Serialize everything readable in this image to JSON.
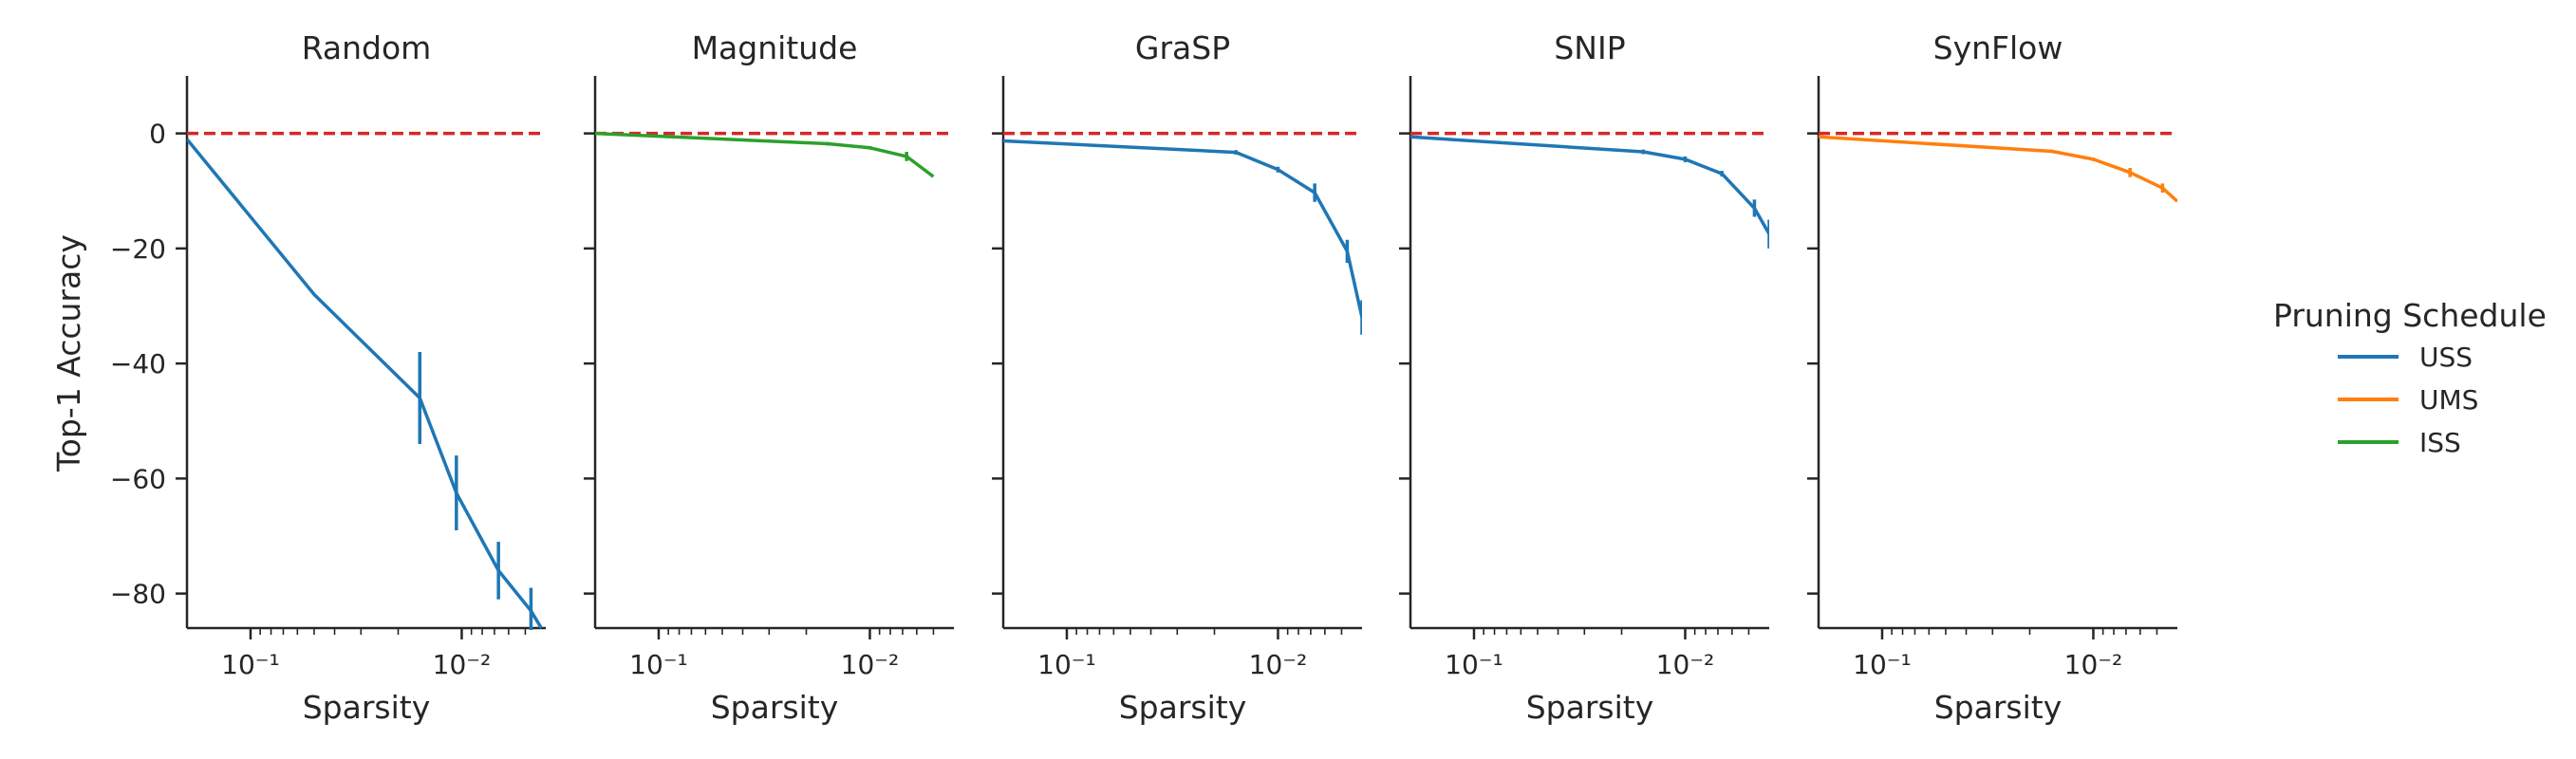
{
  "chart_data": {
    "type": "line",
    "ylabel": "Top-1 Accuracy",
    "xlabel": "Sparsity",
    "x_scale": "log-reversed",
    "xlim": [
      0.2,
      0.004
    ],
    "ylim": [
      -86,
      10
    ],
    "y_ticks": [
      0,
      -20,
      -40,
      -60,
      -80
    ],
    "y_tick_labels": [
      "0",
      "−20",
      "−40",
      "−60",
      "−80"
    ],
    "x_ticks": [
      0.1,
      0.01
    ],
    "x_tick_labels": [
      "10⁻¹",
      "10⁻²"
    ],
    "reference_line": {
      "y": 0,
      "color": "#d62728",
      "style": "dashed"
    },
    "legend": {
      "title": "Pruning Schedule",
      "placement": "right",
      "entries": [
        {
          "name": "USS",
          "color": "#1f77b4"
        },
        {
          "name": "UMS",
          "color": "#ff7f0e"
        },
        {
          "name": "ISS",
          "color": "#2ca02c"
        }
      ]
    },
    "panels": [
      {
        "title": "Random",
        "series": [
          {
            "name": "USS",
            "color": "#1f77b4",
            "x": [
              0.2,
              0.05,
              0.0158,
              0.0106,
              0.0067,
              0.0047,
              0.0042
            ],
            "y": [
              -1,
              -28,
              -46,
              -62.5,
              -76,
              -83,
              -86
            ],
            "err": [
              0,
              0,
              8,
              6.5,
              5,
              4,
              0
            ]
          }
        ]
      },
      {
        "title": "Magnitude",
        "series": [
          {
            "name": "ISS",
            "color": "#2ca02c",
            "x": [
              0.2,
              0.0158,
              0.01,
              0.0067,
              0.005
            ],
            "y": [
              0,
              -1.8,
              -2.5,
              -4,
              -7.5
            ],
            "err": [
              0,
              0.3,
              0.3,
              0.8,
              0
            ]
          }
        ]
      },
      {
        "title": "GraSP",
        "series": [
          {
            "name": "USS",
            "color": "#1f77b4",
            "x": [
              0.2,
              0.0158,
              0.01,
              0.0067,
              0.0047,
              0.004
            ],
            "y": [
              -1.3,
              -3.3,
              -6.3,
              -10.3,
              -20.5,
              -32
            ],
            "err": [
              0,
              0.4,
              0.5,
              1.6,
              2,
              3
            ]
          }
        ]
      },
      {
        "title": "SNIP",
        "series": [
          {
            "name": "USS",
            "color": "#1f77b4",
            "x": [
              0.2,
              0.0158,
              0.01,
              0.0067,
              0.0047,
              0.004
            ],
            "y": [
              -0.6,
              -3.2,
              -4.5,
              -7,
              -13,
              -17.5
            ],
            "err": [
              0,
              0.4,
              0.5,
              0.5,
              1.5,
              2.5
            ]
          }
        ]
      },
      {
        "title": "SynFlow",
        "series": [
          {
            "name": "UMS",
            "color": "#ff7f0e",
            "x": [
              0.2,
              0.0158,
              0.01,
              0.0067,
              0.0047,
              0.004
            ],
            "y": [
              -0.6,
              -3.1,
              -4.5,
              -6.8,
              -9.5,
              -11.8
            ],
            "err": [
              0,
              0.3,
              0.3,
              0.8,
              0.8,
              0
            ]
          }
        ]
      }
    ]
  }
}
